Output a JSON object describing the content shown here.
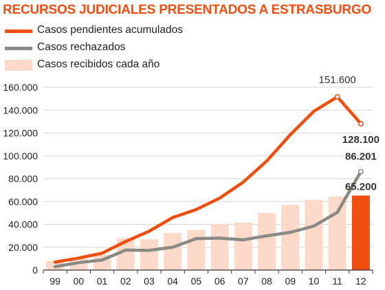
{
  "chart_data": {
    "type": "bar",
    "title": "RECURSOS JUDICIALES PRESENTADOS A ESTRASBURGO",
    "categories": [
      "99",
      "00",
      "01",
      "02",
      "03",
      "04",
      "05",
      "06",
      "07",
      "08",
      "09",
      "10",
      "11",
      "12"
    ],
    "ylim": [
      0,
      160000
    ],
    "yticks": [
      0,
      20000,
      40000,
      60000,
      80000,
      100000,
      120000,
      140000,
      160000
    ],
    "ytick_labels": [
      "0",
      "20.000",
      "40.000",
      "60.000",
      "80.000",
      "100.000",
      "120.000",
      "140.000",
      "160.000"
    ],
    "grid": true,
    "legend_position": "top-left",
    "series": [
      {
        "name": "Casos pendientes acumulados",
        "type": "line",
        "color": "#f04e0f",
        "values": [
          7000,
          10500,
          14800,
          25000,
          34000,
          46000,
          53000,
          63000,
          77000,
          95500,
          118500,
          139000,
          151600,
          128100
        ]
      },
      {
        "name": "Casos rechazados",
        "type": "line",
        "color": "#8a8a85",
        "values": [
          3000,
          6500,
          8800,
          17500,
          17200,
          20000,
          27500,
          28000,
          26500,
          30000,
          33000,
          38500,
          50500,
          86201
        ]
      },
      {
        "name": "Casos recibidos cada año",
        "type": "bar",
        "color": "#fcd9c9",
        "highlight_color": "#f04e0f",
        "values": [
          8000,
          10500,
          13500,
          28000,
          27000,
          32500,
          35000,
          40500,
          41500,
          50000,
          57000,
          61500,
          64500,
          65200
        ]
      }
    ],
    "annotations": [
      {
        "text": "151.600",
        "series": 0,
        "index": 12
      },
      {
        "text": "128.100",
        "series": 0,
        "index": 13
      },
      {
        "text": "86.201",
        "series": 1,
        "index": 13
      },
      {
        "text": "65.200",
        "series": 2,
        "index": 13
      }
    ]
  },
  "colors": {
    "title": "#f04e0f",
    "axis": "#333333",
    "grid": "#d6d6d6"
  }
}
